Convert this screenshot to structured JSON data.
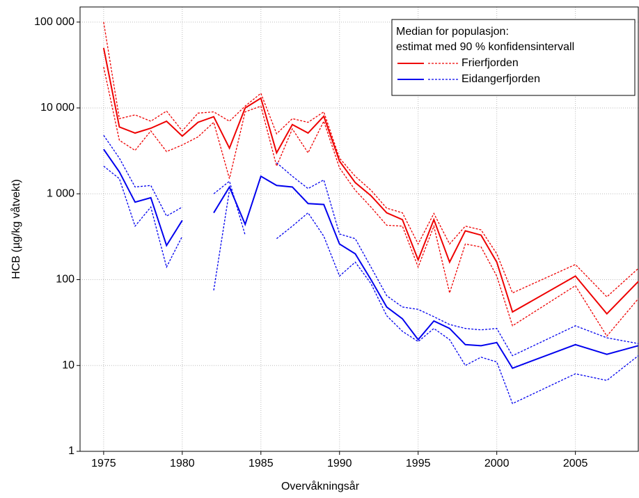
{
  "chart_data": {
    "type": "line",
    "x_label": "Overvåkningsår",
    "y_label": "HCB (µg/kg våtvekt)",
    "legend_title": [
      "Median for populasjon:",
      "estimat med 90 % konfidensintervall"
    ],
    "legend": "upper right",
    "grid": true,
    "y_scale": "log",
    "x": [
      1975,
      1976,
      1977,
      1978,
      1979,
      1980,
      1981,
      1982,
      1983,
      1984,
      1985,
      1986,
      1987,
      1988,
      1989,
      1990,
      1991,
      1992,
      1993,
      1994,
      1995,
      1996,
      1997,
      1998,
      1999,
      2000,
      2001,
      2005,
      2007,
      2009
    ],
    "series": [
      {
        "name": "Frierfjorden",
        "color": "#ee0000",
        "values": [
          50000,
          6000,
          5100,
          5800,
          7000,
          4700,
          6800,
          7900,
          3400,
          10000,
          13000,
          3000,
          6400,
          5100,
          8000,
          2400,
          1350,
          950,
          600,
          500,
          170,
          500,
          160,
          370,
          330,
          160,
          42,
          110,
          40,
          95
        ],
        "upper": [
          100000,
          7500,
          8300,
          7000,
          9200,
          5400,
          8700,
          9000,
          7000,
          10500,
          14800,
          5000,
          7500,
          6800,
          9000,
          2600,
          1600,
          1100,
          680,
          600,
          260,
          590,
          260,
          420,
          380,
          200,
          70,
          150,
          63,
          135
        ],
        "lower": [
          30000,
          4200,
          3200,
          5400,
          3100,
          3700,
          4600,
          6800,
          1500,
          9000,
          10500,
          2100,
          5700,
          3000,
          7000,
          2000,
          1100,
          700,
          430,
          420,
          140,
          420,
          70,
          260,
          240,
          110,
          29,
          85,
          22,
          60
        ]
      },
      {
        "name": "Eidangerfjorden",
        "color": "#0000ee",
        "values": [
          3300,
          1800,
          800,
          900,
          250,
          490,
          null,
          600,
          1200,
          440,
          1600,
          1250,
          1200,
          770,
          750,
          260,
          200,
          100,
          48,
          35,
          20,
          33,
          27,
          17.5,
          17,
          18.5,
          9.3,
          17.5,
          13.5,
          17
        ],
        "upper": [
          4800,
          2600,
          1200,
          1250,
          550,
          700,
          null,
          1000,
          1400,
          330,
          null,
          2300,
          1600,
          1150,
          1450,
          340,
          300,
          140,
          65,
          48,
          45,
          37,
          30,
          27,
          26,
          27,
          13,
          29,
          21,
          18
        ],
        "lower": [
          2100,
          1500,
          420,
          700,
          140,
          320,
          null,
          75,
          1100,
          null,
          null,
          300,
          420,
          600,
          320,
          110,
          160,
          90,
          38,
          25,
          19,
          27,
          20,
          10,
          12.5,
          11,
          3.6,
          8,
          6.7,
          13
        ]
      }
    ],
    "xlim": [
      1973.5,
      2009
    ],
    "xticks": [
      1975,
      1980,
      1985,
      1990,
      1995,
      2000,
      2005
    ],
    "ylim": [
      1,
      150000
    ],
    "yticks": [
      {
        "value": 100000,
        "label": "100 000"
      },
      {
        "value": 10000,
        "label": "10 000"
      },
      {
        "value": 1000,
        "label": "1 000"
      },
      100,
      10,
      1
    ]
  }
}
